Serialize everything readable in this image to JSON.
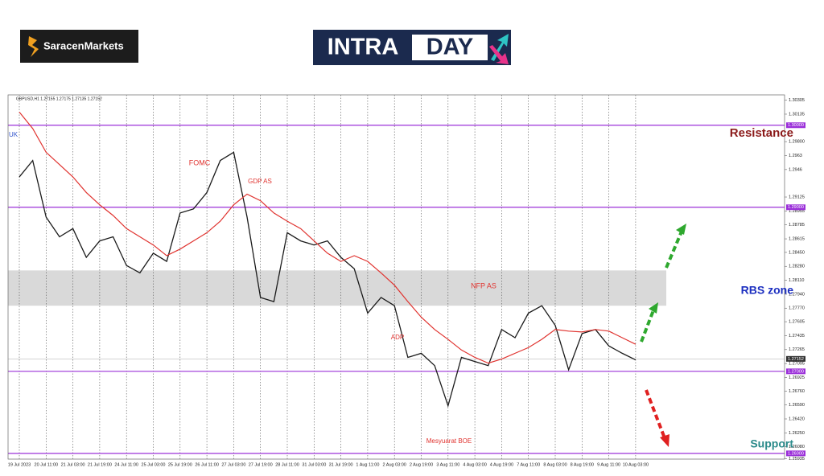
{
  "logo": "SaracenMarkets",
  "banner": [
    "INTRA",
    "DAY"
  ],
  "chart_data": {
    "type": "line",
    "header": "GBPUSD,H1 1.27155 1.27175 1.27135 1.27152",
    "categories": [
      "19 Jul 2023",
      null,
      "20 Jul 11:00",
      null,
      "21 Jul 03:00",
      null,
      "21 Jul 19:00",
      null,
      "24 Jul 11:00",
      null,
      "25 Jul 03:00",
      null,
      "25 Jul 19:00",
      null,
      "26 Jul 11:00",
      null,
      "27 Jul 03:00",
      null,
      "27 Jul 19:00",
      null,
      "28 Jul 11:00",
      null,
      "31 Jul 03:00",
      null,
      "31 Jul 19:00",
      null,
      "1 Aug 11:00",
      null,
      "2 Aug 03:00",
      null,
      "2 Aug 19:00",
      null,
      "3 Aug 11:00",
      null,
      "4 Aug 03:00",
      null,
      "4 Aug 19:00",
      null,
      "7 Aug 11:00",
      null,
      "8 Aug 03:00",
      null,
      "8 Aug 19:00",
      null,
      "9 Aug 11:00",
      null,
      "10 Aug 03:00"
    ],
    "series": [
      {
        "name": "GBPUSD",
        "color": "#1a1a1a",
        "values": [
          1.2937,
          1.2957,
          1.2888,
          1.2864,
          1.2874,
          1.2839,
          1.2859,
          1.2864,
          1.2829,
          1.282,
          1.2844,
          1.2834,
          1.2893,
          1.2898,
          1.2918,
          1.2957,
          1.2967,
          1.2888,
          1.279,
          1.2785,
          1.2869,
          1.2859,
          1.2854,
          1.2859,
          1.2839,
          1.2825,
          1.2771,
          1.279,
          1.278,
          1.2717,
          1.2722,
          1.2707,
          1.2658,
          1.2717,
          1.2712,
          1.2707,
          1.2751,
          1.2741,
          1.2771,
          1.278,
          1.2756,
          1.2702,
          1.2746,
          1.2751,
          1.2731,
          1.2722,
          1.2714
        ]
      },
      {
        "name": "MA",
        "color": "#e0332f",
        "values": [
          1.3016,
          1.2996,
          1.2967,
          1.2952,
          1.2937,
          1.2918,
          1.2903,
          1.289,
          1.2874,
          1.2864,
          1.2854,
          1.2841,
          1.2849,
          1.2859,
          1.2869,
          1.2883,
          1.2903,
          1.2916,
          1.2908,
          1.2893,
          1.2883,
          1.2874,
          1.2859,
          1.2844,
          1.2834,
          1.2841,
          1.2834,
          1.282,
          1.2805,
          1.2785,
          1.2766,
          1.2751,
          1.2739,
          1.2726,
          1.2717,
          1.271,
          1.2715,
          1.2722,
          1.2729,
          1.2739,
          1.2751,
          1.2749,
          1.2748,
          1.2751,
          1.2749,
          1.2741,
          1.2733
        ]
      }
    ],
    "ylim": [
      1.2593,
      1.3037
    ],
    "yticks": [
      1.30305,
      1.30135,
      {
        "value": 1.298,
        "label": "1.29800"
      },
      1.2963,
      1.2946,
      1.29125,
      1.28955,
      1.28785,
      1.28615,
      {
        "value": 1.2845,
        "label": "1.28450"
      },
      {
        "value": 1.2828,
        "label": "1.28280"
      },
      {
        "value": 1.2811,
        "label": "1.28110"
      },
      {
        "value": 1.2794,
        "label": "1.27940"
      },
      {
        "value": 1.2777,
        "label": "1.27770"
      },
      1.27605,
      1.27435,
      1.27265,
      1.27095,
      1.26925,
      {
        "value": 1.2676,
        "label": "1.26760"
      },
      {
        "value": 1.2659,
        "label": "1.26590"
      },
      {
        "value": 1.2642,
        "label": "1.26420"
      },
      {
        "value": 1.2625,
        "label": "1.26250"
      },
      {
        "value": 1.2608,
        "label": "1.26080"
      },
      1.25935
    ],
    "levels": [
      {
        "value": 1.3,
        "label": "1.30000"
      },
      {
        "value": 1.29,
        "label": "1.29000"
      },
      {
        "value": 1.27,
        "label": "1.27000"
      },
      {
        "value": 1.26,
        "label": "1.26000"
      }
    ],
    "level_color": "#9b30d9",
    "last_price": 1.27152,
    "zone": {
      "from": 1.278,
      "to": 1.2823,
      "color": "#d9d9d9"
    },
    "grid": true,
    "annotations": [
      "UK",
      "FOMC",
      "GDP AS",
      "NFP AS",
      "ADP",
      "Mesyuarat BOE"
    ],
    "zone_labels": [
      "Resistance",
      "RBS zone",
      "Support"
    ]
  }
}
